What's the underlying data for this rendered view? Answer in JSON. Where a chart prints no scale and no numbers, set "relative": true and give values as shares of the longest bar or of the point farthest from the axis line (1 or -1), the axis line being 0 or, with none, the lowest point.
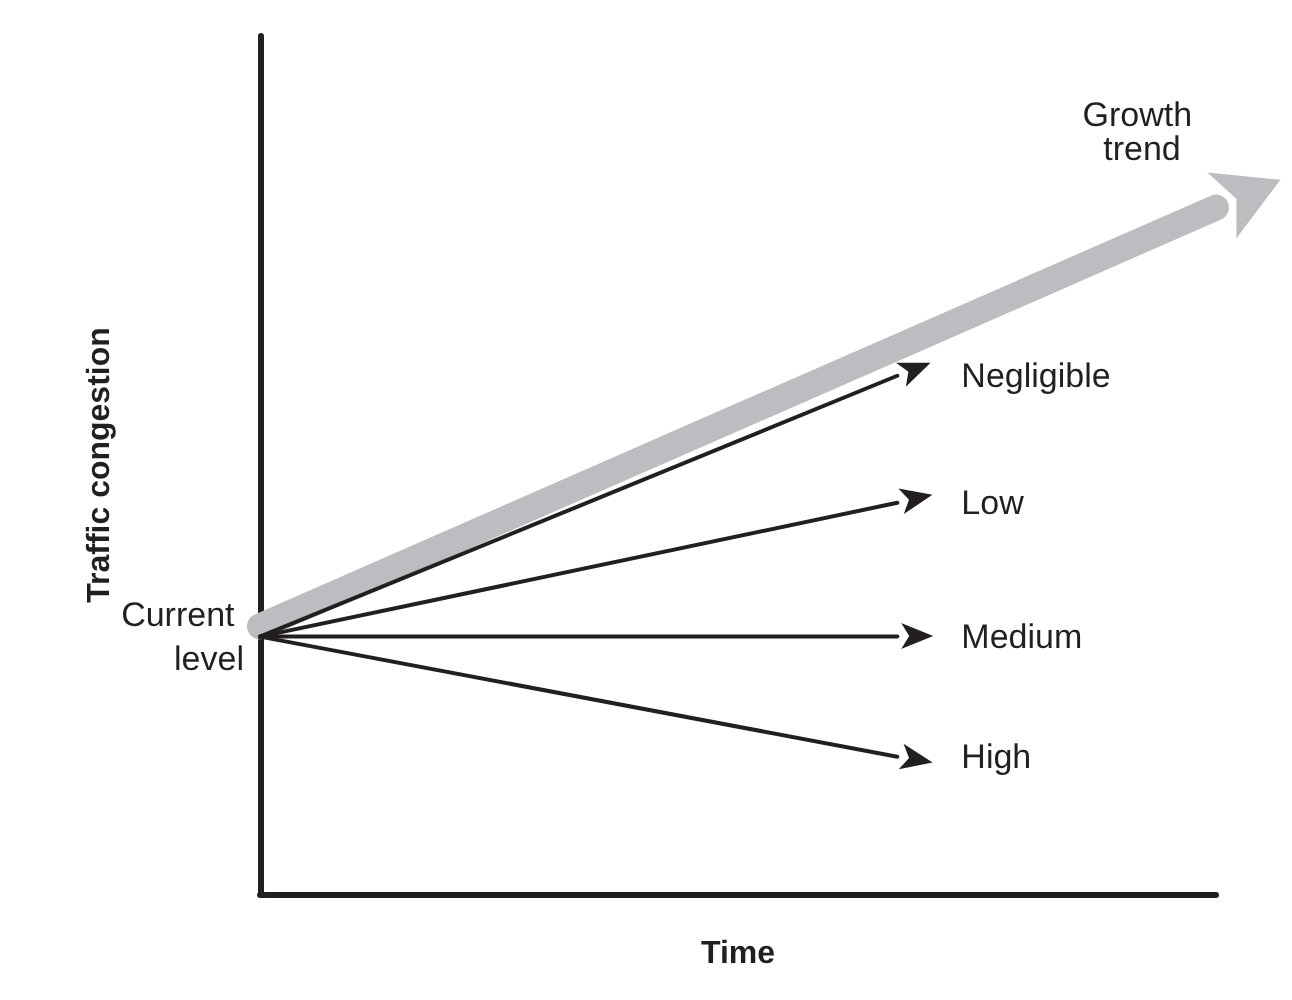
{
  "chart_data": {
    "type": "line",
    "relative": true,
    "xlabel": "Time",
    "ylabel": "Traffic congestion",
    "grid": false,
    "categories": [
      null,
      null,
      null,
      null
    ],
    "series": [
      {
        "name": "Growth trend",
        "color": "#bcbdc0",
        "values": [
          0.39,
          null,
          null,
          1
        ]
      },
      {
        "name": "Negligible",
        "color": "#231f20",
        "values": [
          0.375,
          null,
          0.755,
          null
        ]
      },
      {
        "name": "Low",
        "color": "#231f20",
        "values": [
          0.375,
          null,
          0.57,
          null
        ]
      },
      {
        "name": "Medium",
        "color": "#231f20",
        "values": [
          0.375,
          null,
          0.375,
          null
        ]
      },
      {
        "name": "High",
        "color": "#231f20",
        "values": [
          0.375,
          null,
          0.2,
          null
        ]
      }
    ],
    "annotations": [
      "Current level"
    ]
  }
}
